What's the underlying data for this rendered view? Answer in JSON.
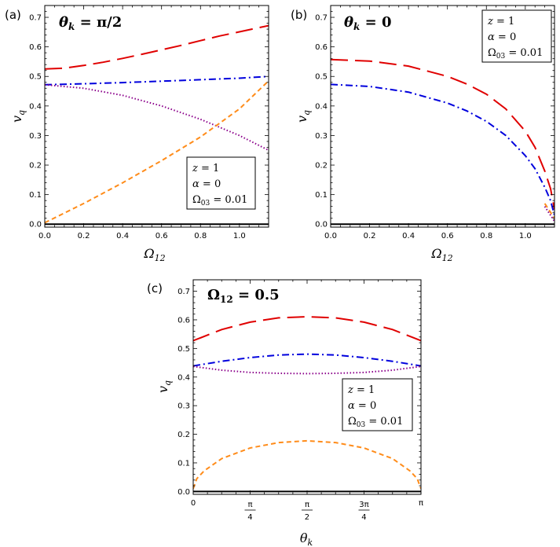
{
  "chart_data": [
    {
      "panel": "(a)",
      "type": "line",
      "title": "θ_k = π/2",
      "xlabel": "Ω12",
      "ylabel": "v_q",
      "xlim": [
        0,
        1.15
      ],
      "ylim": [
        -0.01,
        0.74
      ],
      "xticks": [
        "0.0",
        "0.2",
        "0.4",
        "0.6",
        "0.8",
        "1.0"
      ],
      "yticks": [
        "0.0",
        "0.1",
        "0.2",
        "0.3",
        "0.4",
        "0.5",
        "0.6",
        "0.7"
      ],
      "legend": [
        "z = 1",
        "α = 0",
        "Ω03 = 0.01"
      ],
      "legend_position": "bottom-right",
      "series": [
        {
          "color": "#e00000",
          "style": "long-dash",
          "x": [
            0,
            0.1,
            0.2,
            0.3,
            0.4,
            0.5,
            0.6,
            0.7,
            0.8,
            0.9,
            1.0,
            1.15
          ],
          "y": [
            0.525,
            0.528,
            0.537,
            0.548,
            0.561,
            0.575,
            0.59,
            0.605,
            0.621,
            0.637,
            0.651,
            0.672
          ]
        },
        {
          "color": "#0000dd",
          "style": "dash-dot",
          "x": [
            0,
            0.2,
            0.4,
            0.6,
            0.8,
            1.0,
            1.15
          ],
          "y": [
            0.472,
            0.475,
            0.479,
            0.484,
            0.489,
            0.494,
            0.5
          ]
        },
        {
          "color": "#8b008b",
          "style": "dotted",
          "x": [
            0,
            0.2,
            0.4,
            0.6,
            0.8,
            1.0,
            1.15
          ],
          "y": [
            0.472,
            0.46,
            0.436,
            0.4,
            0.355,
            0.3,
            0.25
          ]
        },
        {
          "color": "#ff8c1a",
          "style": "dashed",
          "x": [
            0,
            0.2,
            0.4,
            0.6,
            0.8,
            1.0,
            1.15
          ],
          "y": [
            0.005,
            0.07,
            0.14,
            0.215,
            0.295,
            0.39,
            0.485
          ]
        },
        {
          "color": "#000000",
          "style": "solid",
          "x": [
            0,
            1.15
          ],
          "y": [
            0,
            0
          ]
        }
      ]
    },
    {
      "panel": "(b)",
      "type": "line",
      "title": "θ_k = 0",
      "xlabel": "Ω12",
      "ylabel": "v_q",
      "xlim": [
        0,
        1.15
      ],
      "ylim": [
        -0.01,
        0.74
      ],
      "xticks": [
        "0.0",
        "0.2",
        "0.4",
        "0.6",
        "0.8",
        "1.0"
      ],
      "yticks": [
        "0.0",
        "0.1",
        "0.2",
        "0.3",
        "0.4",
        "0.5",
        "0.6",
        "0.7"
      ],
      "legend": [
        "z = 1",
        "α = 0",
        "Ω03 = 0.01"
      ],
      "legend_position": "top-right",
      "series": [
        {
          "color": "#e00000",
          "style": "long-dash",
          "x": [
            0,
            0.2,
            0.4,
            0.6,
            0.7,
            0.8,
            0.9,
            1.0,
            1.05,
            1.1,
            1.13,
            1.15
          ],
          "y": [
            0.557,
            0.552,
            0.535,
            0.5,
            0.474,
            0.44,
            0.39,
            0.315,
            0.26,
            0.18,
            0.12,
            0.05
          ]
        },
        {
          "color": "#0000dd",
          "style": "dash-dot",
          "x": [
            0,
            0.2,
            0.4,
            0.6,
            0.7,
            0.8,
            0.9,
            1.0,
            1.05,
            1.1,
            1.13,
            1.15
          ],
          "y": [
            0.473,
            0.466,
            0.447,
            0.41,
            0.383,
            0.348,
            0.3,
            0.232,
            0.188,
            0.125,
            0.08,
            0.03
          ]
        },
        {
          "color": "#8b008b",
          "style": "dotted",
          "x": [
            1.1,
            1.13,
            1.15
          ],
          "y": [
            0.06,
            0.03,
            0.01
          ]
        },
        {
          "color": "#ff8c1a",
          "style": "dashed",
          "x": [
            1.1,
            1.13,
            1.15
          ],
          "y": [
            0.07,
            0.04,
            0.02
          ]
        },
        {
          "color": "#000000",
          "style": "solid",
          "x": [
            0,
            1.15
          ],
          "y": [
            0,
            0
          ]
        }
      ]
    },
    {
      "panel": "(c)",
      "type": "line",
      "title": "Ω12 = 0.5",
      "xlabel": "θ_k",
      "ylabel": "v_q",
      "xlim": [
        0,
        3.1416
      ],
      "ylim": [
        -0.01,
        0.74
      ],
      "xticks": [
        "0",
        "π/4",
        "π/2",
        "3π/4",
        "π"
      ],
      "yticks": [
        "0.0",
        "0.1",
        "0.2",
        "0.3",
        "0.4",
        "0.5",
        "0.6",
        "0.7"
      ],
      "legend": [
        "z = 1",
        "α = 0",
        "Ω03 = 0.01"
      ],
      "legend_position": "right",
      "series": [
        {
          "color": "#e00000",
          "style": "long-dash",
          "x": [
            0,
            0.3927,
            0.7854,
            1.1781,
            1.5708,
            1.9635,
            2.3562,
            2.7489,
            3.1416
          ],
          "y": [
            0.527,
            0.566,
            0.592,
            0.607,
            0.611,
            0.607,
            0.592,
            0.566,
            0.527
          ]
        },
        {
          "color": "#0000dd",
          "style": "dash-dot",
          "x": [
            0,
            0.3927,
            0.7854,
            1.1781,
            1.5708,
            1.9635,
            2.3562,
            2.7489,
            3.1416
          ],
          "y": [
            0.439,
            0.455,
            0.468,
            0.477,
            0.48,
            0.477,
            0.468,
            0.455,
            0.439
          ]
        },
        {
          "color": "#8b008b",
          "style": "dotted",
          "x": [
            0,
            0.3927,
            0.7854,
            1.1781,
            1.5708,
            1.9635,
            2.3562,
            2.7489,
            3.1416
          ],
          "y": [
            0.437,
            0.424,
            0.416,
            0.413,
            0.412,
            0.413,
            0.416,
            0.424,
            0.437
          ]
        },
        {
          "color": "#ff8c1a",
          "style": "dashed",
          "x": [
            0,
            0.05,
            0.15,
            0.3927,
            0.7854,
            1.1781,
            1.5708,
            1.9635,
            2.3562,
            2.7489,
            2.99,
            3.09,
            3.1416
          ],
          "y": [
            0.01,
            0.045,
            0.072,
            0.115,
            0.152,
            0.171,
            0.177,
            0.171,
            0.152,
            0.115,
            0.072,
            0.045,
            0.01
          ]
        },
        {
          "color": "#000000",
          "style": "solid",
          "x": [
            0,
            3.1416
          ],
          "y": [
            0,
            0
          ]
        }
      ]
    }
  ]
}
